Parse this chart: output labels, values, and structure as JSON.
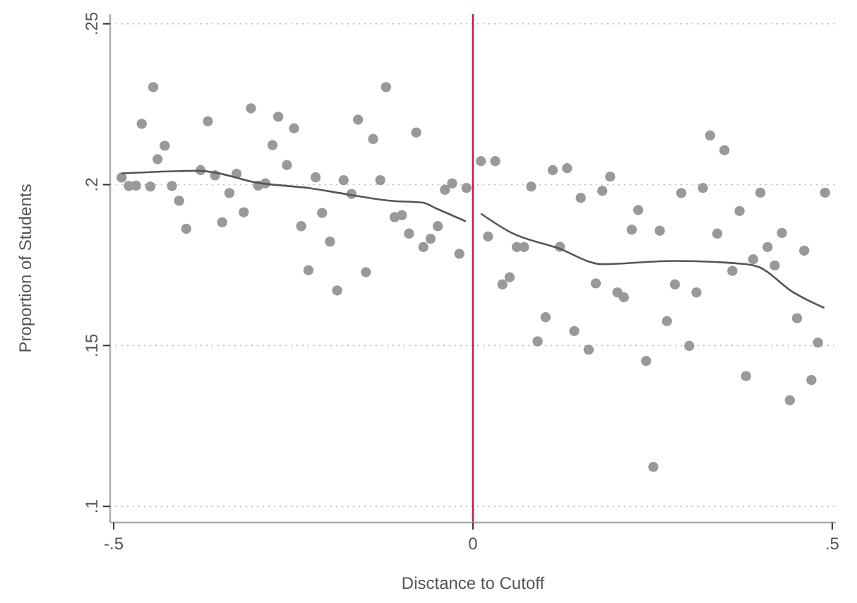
{
  "chart_data": {
    "type": "scatter",
    "xlabel": "Disctance to Cutoff",
    "ylabel": "Proportion of Students",
    "xlim": [
      -0.505,
      0.505
    ],
    "ylim": [
      0.095,
      0.253
    ],
    "xticks": [
      {
        "value": -0.5,
        "label": "-.5"
      },
      {
        "value": 0,
        "label": "0"
      },
      {
        "value": 0.5,
        "label": ".5"
      }
    ],
    "yticks": [
      {
        "value": 0.1,
        "label": ".1"
      },
      {
        "value": 0.15,
        "label": ".15"
      },
      {
        "value": 0.2,
        "label": ".2"
      },
      {
        "value": 0.25,
        "label": ".25"
      }
    ],
    "grid": "y",
    "marker": "circle",
    "ref_lines": [
      {
        "axis": "x",
        "value": 0,
        "color": "#d0104c"
      }
    ],
    "series": [
      {
        "color": "#999999",
        "x": [
          -0.489,
          -0.479,
          -0.469,
          -0.461,
          -0.449,
          -0.445,
          -0.439,
          -0.429,
          -0.419,
          -0.409,
          -0.399,
          -0.379,
          -0.369,
          -0.359,
          -0.349,
          -0.339,
          -0.329,
          -0.319,
          -0.309,
          -0.299,
          -0.289,
          -0.279,
          -0.271,
          -0.259,
          -0.249,
          -0.239,
          -0.229,
          -0.219,
          -0.21,
          -0.199,
          -0.189,
          -0.18,
          -0.169,
          -0.16,
          -0.149,
          -0.139,
          -0.129,
          -0.121,
          -0.109,
          -0.099,
          -0.089,
          -0.079,
          -0.069,
          -0.059,
          -0.049,
          -0.039,
          -0.029,
          -0.019,
          -0.009,
          0.011,
          0.021,
          0.031,
          0.041,
          0.051,
          0.061,
          0.071,
          0.081,
          0.09,
          0.101,
          0.111,
          0.121,
          0.131,
          0.141,
          0.15,
          0.161,
          0.171,
          0.18,
          0.191,
          0.201,
          0.21,
          0.221,
          0.23,
          0.241,
          0.251,
          0.26,
          0.27,
          0.281,
          0.29,
          0.301,
          0.311,
          0.32,
          0.33,
          0.34,
          0.35,
          0.361,
          0.371,
          0.38,
          0.39,
          0.4,
          0.41,
          0.42,
          0.43,
          0.441,
          0.451,
          0.461,
          0.471,
          0.48,
          0.49
        ],
        "values": [
          0.2022,
          0.1996,
          0.1997,
          0.2189,
          0.1994,
          0.2303,
          0.2079,
          0.2121,
          0.1996,
          0.195,
          0.1863,
          0.2045,
          0.2197,
          0.2029,
          0.1883,
          0.1974,
          0.2034,
          0.1914,
          0.2237,
          0.1997,
          0.2004,
          0.2123,
          0.2211,
          0.2061,
          0.2175,
          0.1871,
          0.1734,
          0.2023,
          0.1912,
          0.1823,
          0.1671,
          0.2014,
          0.1971,
          0.2202,
          0.1728,
          0.2142,
          0.2014,
          0.2303,
          0.1899,
          0.1905,
          0.1848,
          0.2162,
          0.1806,
          0.1832,
          0.1871,
          0.1984,
          0.2004,
          0.1785,
          0.199,
          0.2073,
          0.1839,
          0.2073,
          0.169,
          0.1712,
          0.1806,
          0.1806,
          0.1994,
          0.1513,
          0.1588,
          0.2045,
          0.1807,
          0.2051,
          0.1545,
          0.1959,
          0.1487,
          0.1693,
          0.1981,
          0.2025,
          0.1665,
          0.165,
          0.186,
          0.1921,
          0.1452,
          0.1123,
          0.1857,
          0.1576,
          0.169,
          0.1974,
          0.1499,
          0.1665,
          0.199,
          0.2153,
          0.1848,
          0.2107,
          0.1732,
          0.1918,
          0.1405,
          0.1768,
          0.1975,
          0.1806,
          0.1749,
          0.185,
          0.133,
          0.1585,
          0.1795,
          0.1393,
          0.1509,
          0.1975
        ]
      },
      {
        "type": "line",
        "color": "#555555",
        "marker": "none",
        "x": [
          -0.489,
          -0.38,
          -0.358,
          -0.305,
          -0.227,
          -0.175,
          -0.116,
          -0.07,
          -0.051,
          -0.01
        ],
        "values": [
          0.2035,
          0.2043,
          0.2037,
          0.2008,
          0.1989,
          0.197,
          0.195,
          0.1944,
          0.1926,
          0.1886
        ]
      },
      {
        "type": "line",
        "color": "#555555",
        "marker": "none",
        "x": [
          0.011,
          0.053,
          0.118,
          0.18,
          0.281,
          0.379,
          0.398,
          0.444,
          0.489
        ],
        "values": [
          0.191,
          0.1851,
          0.1803,
          0.1753,
          0.1763,
          0.1753,
          0.1744,
          0.1668,
          0.1617
        ]
      }
    ]
  }
}
